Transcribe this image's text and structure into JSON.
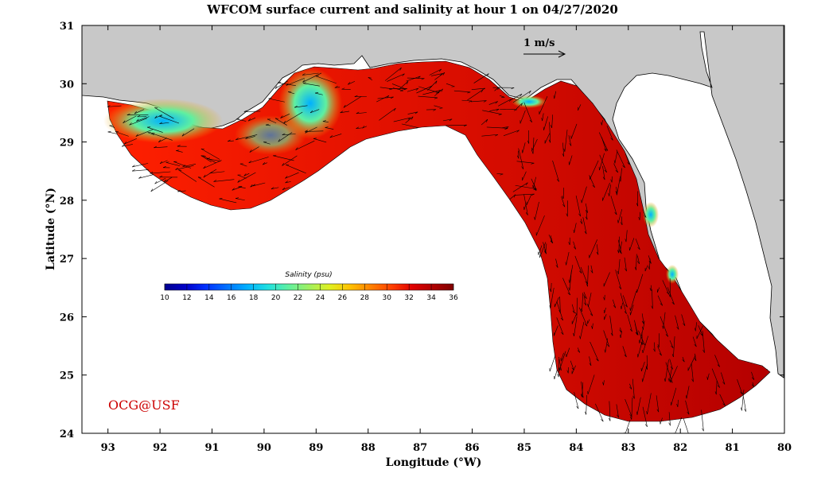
{
  "title": "WFCOM surface current and salinity at hour 1 on 04/27/2020",
  "map": {
    "xlabel": "Longitude (°W)",
    "ylabel": "Latitude (°N)",
    "lon_ticks": [
      "93",
      "92",
      "91",
      "90",
      "89",
      "88",
      "87",
      "86",
      "85",
      "84",
      "83",
      "82",
      "81",
      "80"
    ],
    "lat_ticks": [
      "31",
      "30",
      "29",
      "28",
      "27",
      "26",
      "25",
      "24"
    ],
    "lon_range_west": [
      93.5,
      80
    ],
    "lat_range": [
      24,
      31
    ],
    "land_color": "#c8c8c8",
    "ocean_color": "#ffffff"
  },
  "reference_vector": {
    "label": "1 m/s"
  },
  "colorbar": {
    "title": "Salinity (psu)",
    "range": [
      10,
      36
    ],
    "tick_labels": [
      "10",
      "12",
      "14",
      "16",
      "18",
      "20",
      "22",
      "24",
      "26",
      "28",
      "30",
      "32",
      "34",
      "36"
    ],
    "colors": [
      "#00008f",
      "#0000c8",
      "#0030ff",
      "#0070ff",
      "#00b0ff",
      "#20e0e0",
      "#60f0a0",
      "#a0f060",
      "#e0f020",
      "#ffc000",
      "#ff8000",
      "#ff4000",
      "#e00000",
      "#b00000",
      "#800000"
    ]
  },
  "credit": "OCG@USF"
}
